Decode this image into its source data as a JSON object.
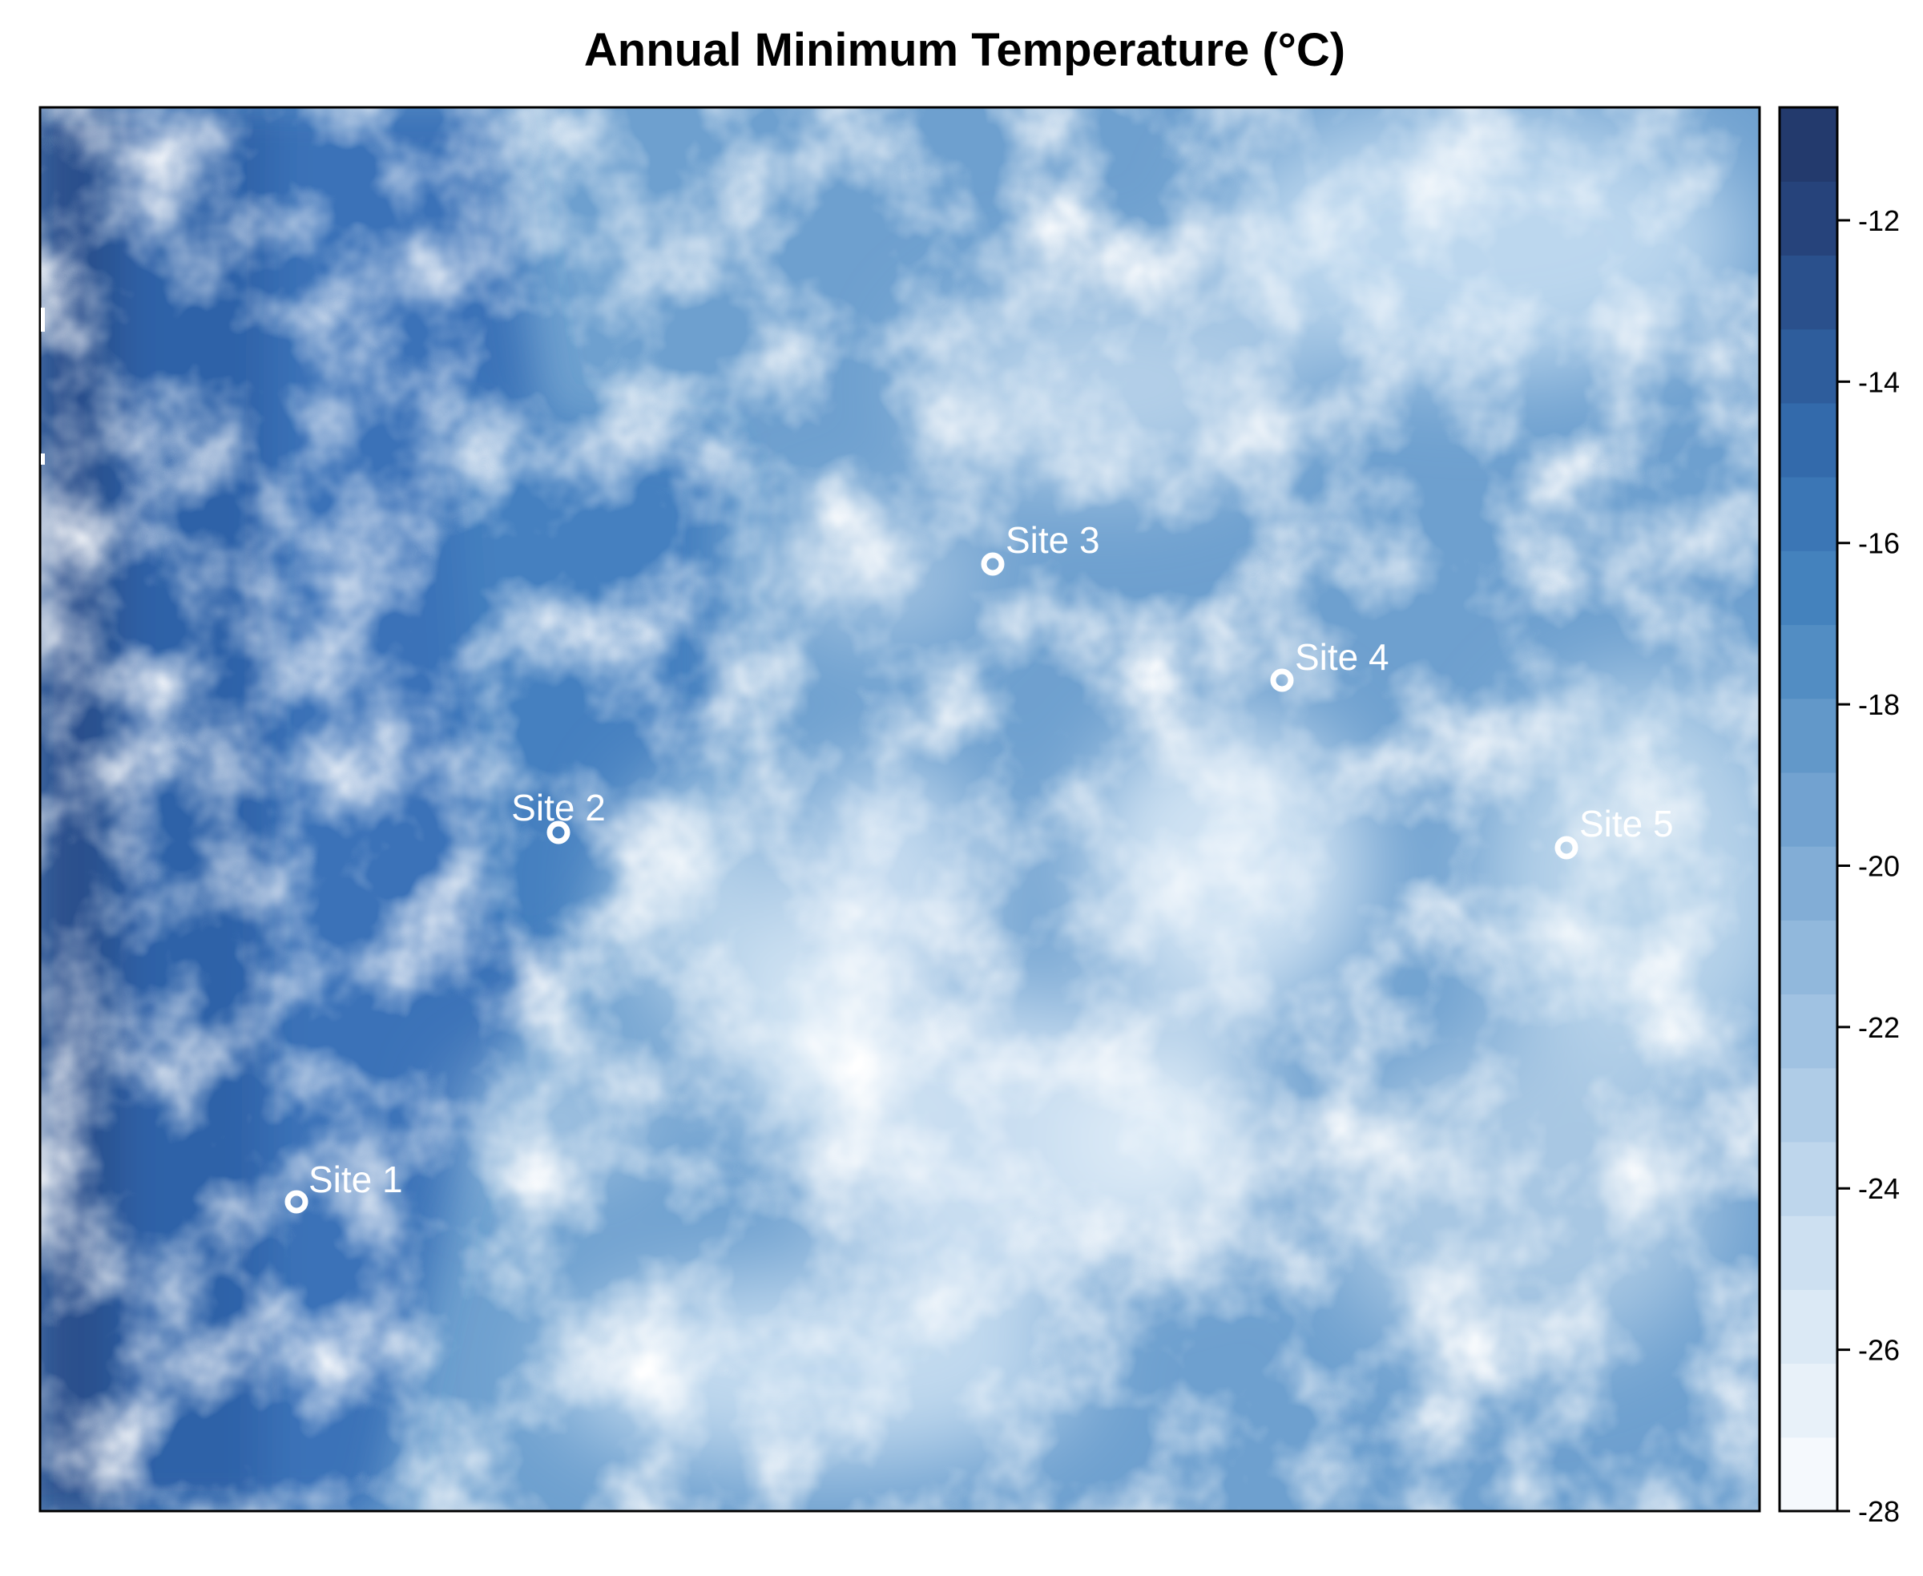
{
  "title": "Annual Minimum Temperature (°C)",
  "map": {
    "type": "raster",
    "variable": "annual minimum temperature",
    "units": "°C",
    "palette": "sequential blue (light = colder, dark = warmer)"
  },
  "legend": {
    "placement": "right",
    "range": [
      -28,
      -10.6
    ],
    "tick_labels": [
      "-12",
      "-14",
      "-16",
      "-18",
      "-20",
      "-22",
      "-24",
      "-26",
      "-28"
    ],
    "tick_values": [
      -12,
      -14,
      -16,
      -18,
      -20,
      -22,
      -24,
      -26,
      -28
    ],
    "colors": [
      "#f5f9fd",
      "#e8f1f9",
      "#dbe9f5",
      "#cde0f1",
      "#bed6ec",
      "#afcce7",
      "#a0c2e2",
      "#91b8dc",
      "#82add6",
      "#72a2d0",
      "#6298c9",
      "#528dc3",
      "#4482bd",
      "#3b76b5",
      "#336aab",
      "#2e5d9c",
      "#2a508c",
      "#26437b",
      "#233a6d"
    ]
  },
  "sites": [
    {
      "label": "Site 1"
    },
    {
      "label": "Site 2"
    },
    {
      "label": "Site 3"
    },
    {
      "label": "Site 4"
    },
    {
      "label": "Site 5"
    }
  ]
}
